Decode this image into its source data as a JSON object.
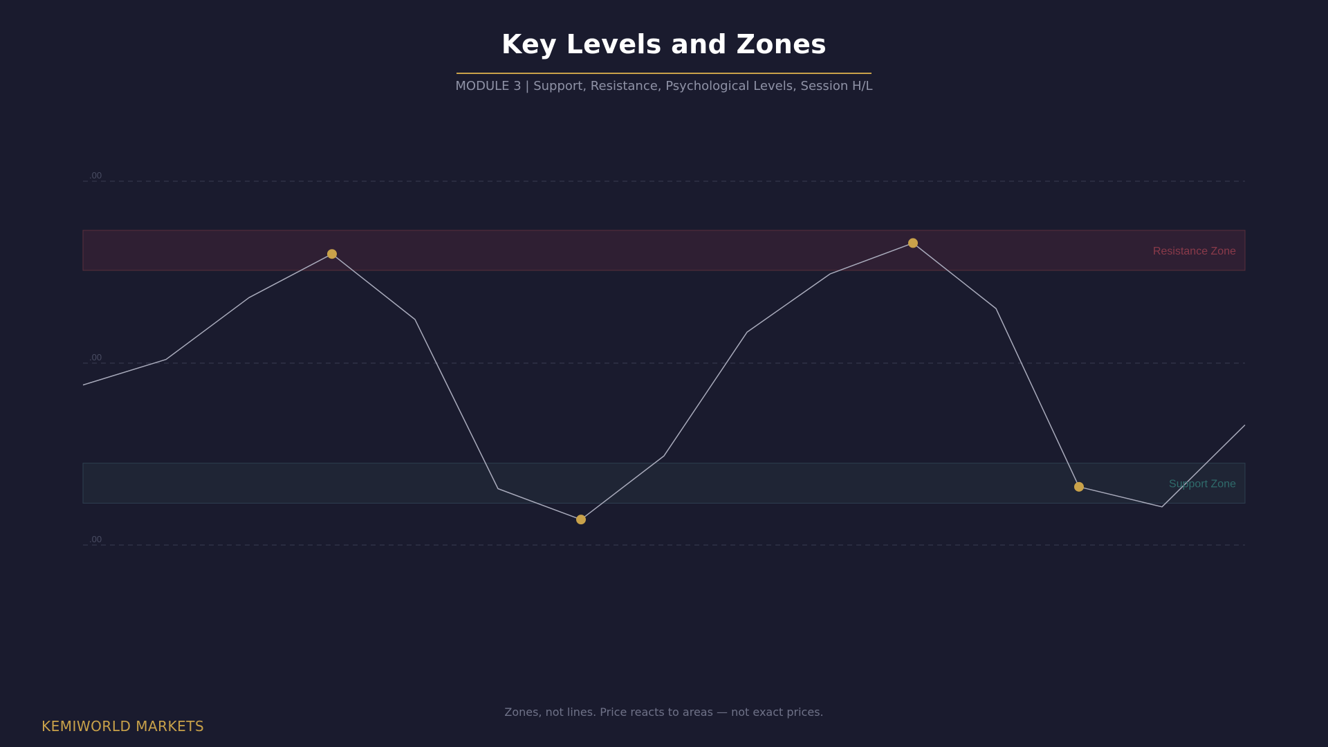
{
  "title": "Key Levels and Zones",
  "subtitle": "MODULE 3  |  Support, Resistance, Psychological Levels, Session H/L",
  "footer_note": "Zones, not lines. Price reacts to areas — not exact prices.",
  "brand": "KEMIWORLD MARKETS",
  "colors": {
    "background": "#1a1b2e",
    "accent": "#c9a24a",
    "price_line": "#a9abbc",
    "resistance_fill": "#2f1f33",
    "resistance_stroke": "#5a2f3c",
    "resistance_text": "#8a3a4a",
    "support_fill": "#1f2535",
    "support_stroke": "#2e3f50",
    "support_text": "#2f6b6b",
    "gridline": "#3a3c52",
    "level_text": "#4a4d63"
  },
  "chart_data": {
    "type": "line",
    "title": "",
    "xlabel": "",
    "ylabel": "",
    "ylim": [
      0,
      100
    ],
    "grid": false,
    "psychological_levels": [
      {
        "label": ".00",
        "y": 100
      },
      {
        "label": ".00",
        "y": 50
      },
      {
        "label": ".00",
        "y": 0
      }
    ],
    "zones": [
      {
        "name": "Resistance Zone",
        "y_low": 75.5,
        "y_high": 86.5,
        "kind": "resistance"
      },
      {
        "name": "Support Zone",
        "y_low": 11.5,
        "y_high": 22.5,
        "kind": "support"
      }
    ],
    "series": [
      {
        "values": [
          44,
          51,
          68,
          80,
          62,
          15.5,
          7,
          24.5,
          58.5,
          74.5,
          83,
          65,
          16,
          10.5,
          33
        ]
      }
    ],
    "touch_points": [
      3,
      6,
      10,
      12
    ]
  }
}
